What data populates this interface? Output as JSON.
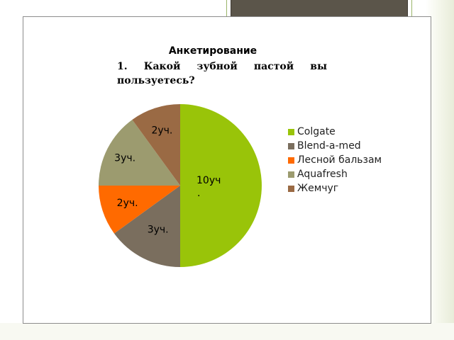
{
  "chart_data": {
    "type": "pie",
    "title": "Анкетирование",
    "subtitle": "1.  Какой  зубной  пастой  вы пользуетесь?",
    "categories": [
      "Colgate",
      "Blend-a-med",
      "Лесной бальзам",
      "Aquafresh",
      "Жемчуг"
    ],
    "values": [
      10,
      3,
      2,
      3,
      2
    ],
    "data_labels": [
      "10уч.",
      "3уч.",
      "2уч.",
      "3уч.",
      "2уч."
    ],
    "colors": [
      "#99c409",
      "#7a6e5e",
      "#ff6a00",
      "#9c9b6f",
      "#9a6a44"
    ],
    "start_angle_deg": 0,
    "direction": "clockwise",
    "legend_position": "right"
  }
}
